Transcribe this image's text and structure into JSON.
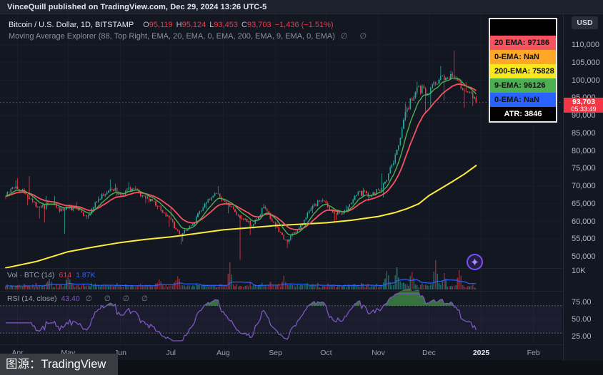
{
  "publish_bar": {
    "text": "VinceQuill published on TradingView.com, Dec 29, 2024 13:26 UTC-5"
  },
  "symbol_row": {
    "title": "Bitcoin / U.S. Dollar, 1D, BITSTAMP",
    "ohlc": [
      {
        "label": "O",
        "value": "95,119"
      },
      {
        "label": "H",
        "value": "95,124"
      },
      {
        "label": "L",
        "value": "93,453"
      },
      {
        "label": "C",
        "value": "93,703"
      }
    ],
    "change": "−1,436 (−1.51%)"
  },
  "ma_row": {
    "text": "Moving Average Explorer (88, Top Right, EMA, 20, EMA, 0, EMA, 200, EMA, 9, EMA, 0, EMA)",
    "icons": "∅ ∅"
  },
  "ema_legend": {
    "rows": [
      {
        "label": "",
        "bg": "#000000",
        "fg": "#ffffff",
        "spacer": true
      },
      {
        "label": "20 EMA: 97186",
        "bg": "#f7525f",
        "fg": "#111111"
      },
      {
        "label": "0-EMA: NaN",
        "bg": "#ffa726",
        "fg": "#111111"
      },
      {
        "label": "200-EMA: 75828",
        "bg": "#f8e71c",
        "fg": "#111111"
      },
      {
        "label": "9-EMA: 96126",
        "bg": "#4caf50",
        "fg": "#111111"
      },
      {
        "label": "0-EMA: NaN",
        "bg": "#2962ff",
        "fg": "#111111"
      },
      {
        "label": "ATR: 3846",
        "bg": "#000000",
        "fg": "#ffffff",
        "dark": true
      }
    ]
  },
  "price_axis": {
    "currency": "USD",
    "labels": [
      {
        "text": "110,000",
        "value": 110000
      },
      {
        "text": "105,000",
        "value": 105000
      },
      {
        "text": "100,000",
        "value": 100000
      },
      {
        "text": "95,000",
        "value": 95000
      },
      {
        "text": "90,000",
        "value": 90000
      },
      {
        "text": "85,000",
        "value": 85000
      },
      {
        "text": "80,000",
        "value": 80000
      },
      {
        "text": "75,000",
        "value": 75000
      },
      {
        "text": "70,000",
        "value": 70000
      },
      {
        "text": "65,000",
        "value": 65000
      },
      {
        "text": "60,000",
        "value": 60000
      },
      {
        "text": "55,000",
        "value": 55000
      },
      {
        "text": "50,000",
        "value": 50000
      }
    ],
    "badge": {
      "price": "93,703",
      "countdown": "05:33:49"
    }
  },
  "volume_pane": {
    "label": "Vol · BTC (14)",
    "current": "614",
    "ma": "1.87K",
    "axis_label": "10K"
  },
  "rsi_pane": {
    "label": "RSI (14, close)",
    "value": "43.40",
    "icons": "∅ ∅ ∅ ∅",
    "axis_labels": [
      {
        "text": "75.00",
        "value": 75
      },
      {
        "text": "50.00",
        "value": 50
      },
      {
        "text": "25.00",
        "value": 25
      }
    ],
    "upper_band": 70,
    "lower_band": 30,
    "middle": 50
  },
  "time_axis": {
    "ticks": [
      {
        "label": "Apr",
        "day": 7
      },
      {
        "label": "May",
        "day": 37
      },
      {
        "label": "Jun",
        "day": 68
      },
      {
        "label": "Jul",
        "day": 98
      },
      {
        "label": "Aug",
        "day": 129
      },
      {
        "label": "Sep",
        "day": 160
      },
      {
        "label": "Oct",
        "day": 190
      },
      {
        "label": "Nov",
        "day": 221
      },
      {
        "label": "Dec",
        "day": 251
      },
      {
        "label": "2025",
        "day": 282,
        "major": true
      },
      {
        "label": "Feb",
        "day": 313
      }
    ]
  },
  "overlay": {
    "source_label": "图源：TradingView"
  },
  "chart_data": {
    "type": "candlestick",
    "title": "Bitcoin / U.S. Dollar, 1D, BITSTAMP",
    "interval": "1D",
    "start_date": "2024-03-25",
    "end_date": "2024-12-29",
    "last_ohlc": {
      "open": 95119,
      "high": 95124,
      "low": 93453,
      "close": 93703
    },
    "change": -1436,
    "change_pct": -1.51,
    "price_axis_range": [
      50000,
      110000
    ],
    "grid_step": 5000,
    "weekly_ohlc_keyframes_format": [
      "day_index",
      "open",
      "high",
      "low",
      "close"
    ],
    "weekly_ohlc_keyframes": [
      [
        0,
        67200,
        71600,
        66300,
        69900
      ],
      [
        7,
        69900,
        72200,
        64500,
        66800
      ],
      [
        14,
        66800,
        72800,
        60800,
        63900
      ],
      [
        21,
        63900,
        67200,
        59700,
        64900
      ],
      [
        28,
        64900,
        67200,
        62700,
        63100
      ],
      [
        35,
        63100,
        64800,
        56500,
        63900
      ],
      [
        42,
        63900,
        65500,
        60600,
        61400
      ],
      [
        49,
        61400,
        67100,
        60700,
        66300
      ],
      [
        56,
        66300,
        71900,
        66100,
        69200
      ],
      [
        63,
        69200,
        70700,
        66700,
        67600
      ],
      [
        70,
        67600,
        71100,
        66900,
        69300
      ],
      [
        77,
        69300,
        70000,
        65100,
        66600
      ],
      [
        84,
        66600,
        67300,
        63400,
        64300
      ],
      [
        91,
        64300,
        64500,
        58400,
        61000
      ],
      [
        98,
        61000,
        63900,
        53500,
        55900
      ],
      [
        105,
        55900,
        59400,
        54300,
        59200
      ],
      [
        112,
        59200,
        65300,
        58900,
        65000
      ],
      [
        119,
        65000,
        68200,
        63500,
        67900
      ],
      [
        126,
        67900,
        70000,
        62300,
        64600
      ],
      [
        133,
        64600,
        64700,
        49100,
        60900
      ],
      [
        140,
        60900,
        61800,
        56100,
        58700
      ],
      [
        147,
        58700,
        64900,
        57800,
        64100
      ],
      [
        154,
        64100,
        64500,
        57900,
        59000
      ],
      [
        161,
        59000,
        59800,
        52500,
        54200
      ],
      [
        168,
        54200,
        58600,
        53600,
        58200
      ],
      [
        175,
        58200,
        63900,
        57500,
        63600
      ],
      [
        182,
        63600,
        66500,
        62300,
        65900
      ],
      [
        189,
        65900,
        66000,
        59800,
        62100
      ],
      [
        196,
        62100,
        64500,
        60300,
        63200
      ],
      [
        203,
        63200,
        68400,
        62500,
        68400
      ],
      [
        210,
        68400,
        69500,
        65700,
        67000
      ],
      [
        217,
        67000,
        73600,
        66900,
        69400
      ],
      [
        224,
        69400,
        77300,
        66800,
        76500
      ],
      [
        231,
        76500,
        93400,
        76300,
        91000
      ],
      [
        238,
        91000,
        99600,
        89400,
        98000
      ],
      [
        245,
        98000,
        98900,
        90800,
        96400
      ],
      [
        252,
        96400,
        104000,
        92300,
        101200
      ],
      [
        259,
        101200,
        102700,
        94200,
        101400
      ],
      [
        266,
        101400,
        108300,
        92200,
        97000
      ],
      [
        273,
        97000,
        99500,
        92700,
        95300
      ],
      [
        279,
        95119,
        95124,
        93453,
        93703
      ]
    ],
    "overlays": {
      "ema20_current": 97186,
      "ema9_current": 96126,
      "ema200_current": 75828,
      "atr_current": 3846,
      "last_close_line": 93703
    },
    "ema200_path_format": [
      "day_index",
      "value"
    ],
    "ema200_path": [
      [
        0,
        46800
      ],
      [
        18,
        48600
      ],
      [
        37,
        51400
      ],
      [
        53,
        52800
      ],
      [
        68,
        54000
      ],
      [
        83,
        54900
      ],
      [
        98,
        55600
      ],
      [
        114,
        56600
      ],
      [
        129,
        57600
      ],
      [
        145,
        58200
      ],
      [
        160,
        58800
      ],
      [
        175,
        59200
      ],
      [
        190,
        59600
      ],
      [
        205,
        60300
      ],
      [
        221,
        61400
      ],
      [
        231,
        62500
      ],
      [
        238,
        63600
      ],
      [
        245,
        65000
      ],
      [
        251,
        67300
      ],
      [
        258,
        69300
      ],
      [
        265,
        71300
      ],
      [
        272,
        73400
      ],
      [
        279,
        75828
      ]
    ],
    "volume": {
      "unit": "K BTC",
      "axis_mark": 10,
      "current": 0.614,
      "ma14_current": 1.87,
      "spikes_format": [
        "day_index",
        "volume_k"
      ],
      "spikes": [
        [
          26,
          4.5
        ],
        [
          37,
          5
        ],
        [
          91,
          3.5
        ],
        [
          102,
          6
        ],
        [
          133,
          13
        ],
        [
          165,
          4.5
        ],
        [
          226,
          8
        ],
        [
          232,
          9
        ],
        [
          241,
          8
        ],
        [
          255,
          15
        ],
        [
          260,
          7
        ],
        [
          269,
          9
        ]
      ]
    },
    "rsi": {
      "period": 14,
      "source": "close",
      "current": 43.4,
      "overbought": 70,
      "oversold": 30
    },
    "colors": {
      "up": "#26a69a",
      "down": "#f23645",
      "ema20": "#f7525f",
      "ema9": "#4caf50",
      "ema200": "#ffeb3b",
      "vol_ma": "#2962ff",
      "rsi": "#7e57c2",
      "rsi_fill": "#4caf50",
      "last_price": "#f23645",
      "grid": "#1d2230"
    }
  }
}
